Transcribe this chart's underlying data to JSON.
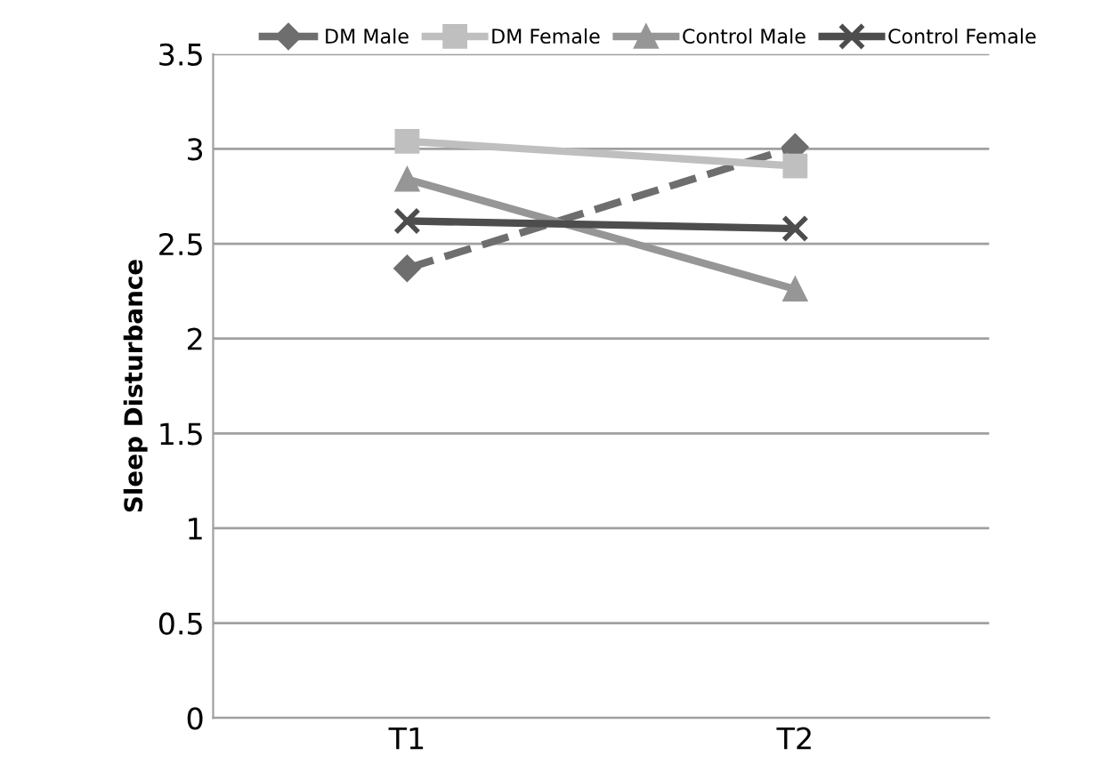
{
  "chart_data": {
    "type": "line",
    "ylabel": "Sleep Disturbance",
    "categories": [
      "T1",
      "T2"
    ],
    "series": [
      {
        "name": "DM Male",
        "color": "#6e6e6e",
        "values": [
          2.37,
          3.01
        ],
        "marker": "diamond",
        "line_style": "dashed"
      },
      {
        "name": "DM Female",
        "color": "#bfbfbf",
        "values": [
          3.04,
          2.91
        ],
        "marker": "square",
        "line_style": "solid"
      },
      {
        "name": "Control Male",
        "color": "#969696",
        "values": [
          2.84,
          2.26
        ],
        "marker": "triangle",
        "line_style": "solid"
      },
      {
        "name": "Control Female",
        "color": "#4d4d4d",
        "values": [
          2.62,
          2.58
        ],
        "marker": "cross",
        "line_style": "solid"
      }
    ],
    "ylim": [
      0,
      3.5
    ],
    "yticks": [
      0,
      0.5,
      1,
      1.5,
      2,
      2.5,
      3,
      3.5
    ],
    "grid": "y",
    "legend": "top"
  }
}
